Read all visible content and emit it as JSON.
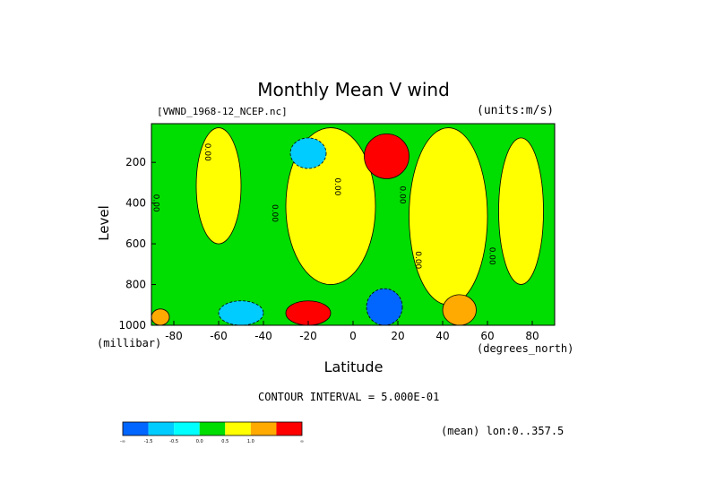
{
  "chart_data": {
    "type": "heatmap",
    "title": "Monthly Mean V wind",
    "file_label": "[VWND_1968-12_NCEP.nc]",
    "units_label": "(units:m/s)",
    "xlabel": "Latitude",
    "ylabel": "Level",
    "x_unit_label": "(degrees_north)",
    "y_unit_label": "(millibar)",
    "xlim": [
      -90,
      90
    ],
    "ylim": [
      1000,
      10
    ],
    "x_ticks": [
      -80,
      -60,
      -40,
      -20,
      0,
      20,
      40,
      60,
      80
    ],
    "y_ticks": [
      200,
      400,
      600,
      800,
      1000
    ],
    "contour_interval_label": "CONTOUR INTERVAL = 5.000E-01",
    "mean_label": "(mean) lon:0..357.5",
    "colorbar": {
      "colors": [
        "#0066ff",
        "#00ccff",
        "#00ffff",
        "#00dd00",
        "#ffff00",
        "#ffaa00",
        "#ff0000"
      ],
      "labels": [
        "-∞",
        "-1.5",
        "-0.5",
        "0.0",
        "0.5",
        "1.0",
        "∞"
      ]
    },
    "contour_labels": [
      {
        "text": "0.00",
        "lat": -66,
        "level": 150
      },
      {
        "text": "0.00",
        "lat": -89,
        "level": 400
      },
      {
        "text": "0.00",
        "lat": -36,
        "level": 450
      },
      {
        "text": "0.00",
        "lat": -8,
        "level": 320
      },
      {
        "text": "0.00",
        "lat": 21,
        "level": 360
      },
      {
        "text": "0.00",
        "lat": 28,
        "level": 680
      },
      {
        "text": "0.00",
        "lat": 61,
        "level": 660
      }
    ],
    "regions": [
      {
        "value": 0.25,
        "lat_range": [
          -70,
          -50
        ],
        "level_range": [
          30,
          600
        ]
      },
      {
        "value": 0.25,
        "lat_range": [
          -30,
          10
        ],
        "level_range": [
          30,
          800
        ]
      },
      {
        "value": 0.25,
        "lat_range": [
          25,
          60
        ],
        "level_range": [
          30,
          900
        ]
      },
      {
        "value": 0.25,
        "lat_range": [
          65,
          85
        ],
        "level_range": [
          80,
          800
        ]
      },
      {
        "value": -0.8,
        "lat_range": [
          -28,
          -12
        ],
        "level_range": [
          80,
          230
        ]
      },
      {
        "value": 1.8,
        "lat_range": [
          5,
          25
        ],
        "level_range": [
          60,
          280
        ]
      },
      {
        "value": -1.8,
        "lat_range": [
          6,
          22
        ],
        "level_range": [
          820,
          1000
        ]
      },
      {
        "value": 1.8,
        "lat_range": [
          -30,
          -10
        ],
        "level_range": [
          880,
          1000
        ]
      },
      {
        "value": -0.8,
        "lat_range": [
          -60,
          -40
        ],
        "level_range": [
          880,
          1000
        ]
      },
      {
        "value": 0.8,
        "lat_range": [
          40,
          55
        ],
        "level_range": [
          850,
          1000
        ]
      },
      {
        "value": 0.8,
        "lat_range": [
          -90,
          -82
        ],
        "level_range": [
          920,
          1000
        ]
      }
    ]
  }
}
